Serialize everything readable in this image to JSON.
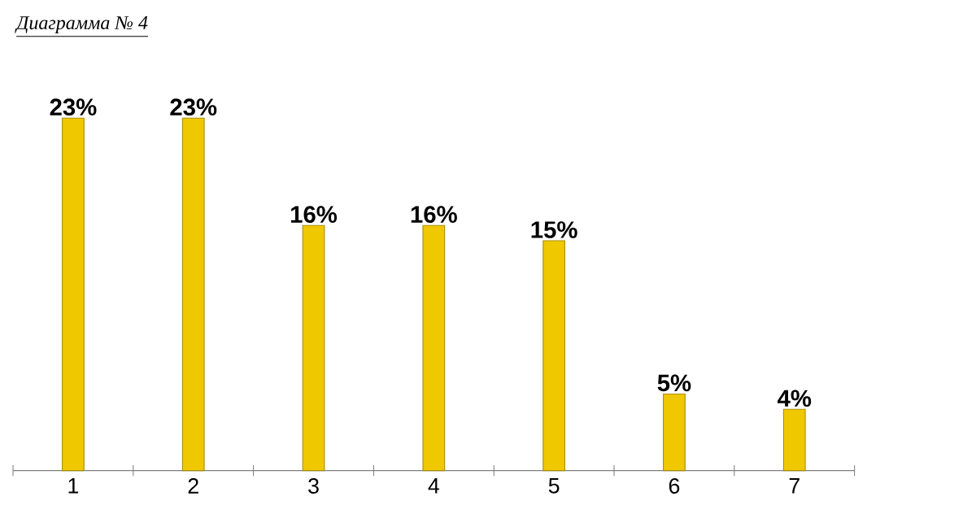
{
  "chart_data": {
    "type": "bar",
    "title": "Диаграмма № 4",
    "categories": [
      "1",
      "2",
      "3",
      "4",
      "5",
      "6",
      "7"
    ],
    "values": [
      23,
      23,
      16,
      16,
      15,
      5,
      4
    ],
    "value_labels": [
      "23%",
      "23%",
      "16%",
      "16%",
      "15%",
      "5%",
      "4%"
    ],
    "color": "#f0c800"
  }
}
